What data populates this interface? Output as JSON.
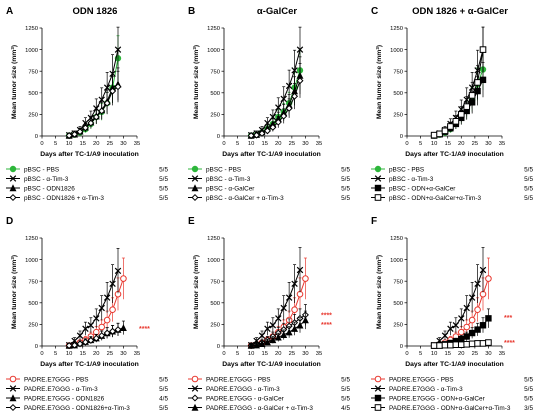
{
  "colors": {
    "red": "#e8382f",
    "green": "#2db63b",
    "black": "#000000"
  },
  "chart_data": [
    {
      "type": "line",
      "letter": "A",
      "title": "ODN 1826",
      "xlabel": "Days after TC-1/A9 inoculation",
      "ylabel_main": "Mean tumor size (mm",
      "ylabel_sup": "3",
      "ylabel_end": ")",
      "xlim": [
        0,
        35
      ],
      "ylim": [
        0,
        1250
      ],
      "xticks": [
        "0",
        "5",
        "10",
        "15",
        "20",
        "25",
        "30",
        "35"
      ],
      "yticks": [
        "0",
        "250",
        "500",
        "750",
        "1000",
        "1250"
      ],
      "series": [
        {
          "name": "pBSC - PBS",
          "ratio": "5/5",
          "color": "#2db63b",
          "marker": "circle",
          "x": [
            10,
            12,
            14,
            16,
            18,
            20,
            22,
            24,
            26,
            28
          ],
          "y": [
            5,
            15,
            40,
            80,
            140,
            220,
            280,
            380,
            560,
            900
          ]
        },
        {
          "name": "pBSC - α-Tim-3",
          "ratio": "5/5",
          "color": "#000000",
          "marker": "x",
          "x": [
            10,
            12,
            14,
            16,
            18,
            20,
            22,
            24,
            26,
            28
          ],
          "y": [
            10,
            30,
            70,
            150,
            210,
            320,
            420,
            560,
            720,
            1000
          ]
        },
        {
          "name": "pBSC - ODN1826",
          "ratio": "5/5",
          "color": "#000000",
          "marker": "triangle",
          "x": [
            10,
            12,
            14,
            16,
            18,
            20,
            22,
            24,
            26,
            28
          ],
          "y": [
            5,
            20,
            55,
            100,
            160,
            230,
            300,
            400,
            560,
            600
          ]
        },
        {
          "name": "pBSC - ODN1826 + α-Tim-3",
          "ratio": "5/5",
          "color": "#000000",
          "marker": "diamond",
          "x": [
            10,
            12,
            14,
            16,
            18,
            20,
            22,
            24,
            26,
            28
          ],
          "y": [
            5,
            20,
            50,
            95,
            150,
            220,
            290,
            380,
            520,
            570
          ]
        }
      ],
      "annotations": []
    },
    {
      "type": "line",
      "letter": "B",
      "title": "α-GalCer",
      "xlabel": "Days after TC-1/A9 inoculation",
      "ylabel_main": "Mean tumor size (mm",
      "ylabel_sup": "3",
      "ylabel_end": ")",
      "xlim": [
        0,
        35
      ],
      "ylim": [
        0,
        1250
      ],
      "xticks": [
        "0",
        "5",
        "10",
        "15",
        "20",
        "25",
        "30",
        "35"
      ],
      "yticks": [
        "0",
        "250",
        "500",
        "750",
        "1000",
        "1250"
      ],
      "series": [
        {
          "name": "pBSC - PBS",
          "ratio": "5/5",
          "color": "#2db63b",
          "marker": "circle",
          "x": [
            10,
            12,
            14,
            16,
            18,
            20,
            22,
            24,
            26,
            28
          ],
          "y": [
            5,
            15,
            40,
            80,
            140,
            220,
            280,
            380,
            560,
            760
          ]
        },
        {
          "name": "pBSC - α-Tim-3",
          "ratio": "5/5",
          "color": "#000000",
          "marker": "x",
          "x": [
            10,
            12,
            14,
            16,
            18,
            20,
            22,
            24,
            26,
            28
          ],
          "y": [
            10,
            30,
            70,
            150,
            220,
            330,
            430,
            580,
            760,
            1000
          ]
        },
        {
          "name": "pBSC - α-GalCer",
          "ratio": "5/5",
          "color": "#000000",
          "marker": "triangle",
          "x": [
            10,
            12,
            14,
            16,
            18,
            20,
            22,
            24,
            26,
            28
          ],
          "y": [
            5,
            15,
            45,
            90,
            140,
            200,
            270,
            360,
            520,
            700
          ]
        },
        {
          "name": "pBSC - α-GalCer + α-Tim-3",
          "ratio": "5/5",
          "color": "#000000",
          "marker": "diamond",
          "x": [
            10,
            12,
            14,
            16,
            18,
            20,
            22,
            24,
            26,
            28
          ],
          "y": [
            5,
            10,
            30,
            60,
            100,
            160,
            230,
            320,
            460,
            640
          ]
        }
      ],
      "annotations": []
    },
    {
      "type": "line",
      "letter": "C",
      "title": "ODN 1826 + α-GalCer",
      "xlabel": "Days after TC-1/A9 inoculation",
      "ylabel_main": "Mean tumor size (mm",
      "ylabel_sup": "3",
      "ylabel_end": ")",
      "xlim": [
        0,
        35
      ],
      "ylim": [
        0,
        1250
      ],
      "xticks": [
        "0",
        "5",
        "10",
        "15",
        "20",
        "25",
        "30",
        "35"
      ],
      "yticks": [
        "0",
        "250",
        "500",
        "750",
        "1000",
        "1250"
      ],
      "series": [
        {
          "name": "pBSC - PBS",
          "ratio": "5/5",
          "color": "#2db63b",
          "marker": "circle",
          "x": [
            10,
            12,
            14,
            16,
            18,
            20,
            22,
            24,
            26,
            28
          ],
          "y": [
            5,
            15,
            40,
            80,
            140,
            220,
            300,
            420,
            600,
            770
          ]
        },
        {
          "name": "pBSC - α-Tim-3",
          "ratio": "5/5",
          "color": "#000000",
          "marker": "x",
          "x": [
            10,
            12,
            14,
            16,
            18,
            20,
            22,
            24,
            26,
            28
          ],
          "y": [
            10,
            30,
            70,
            140,
            210,
            310,
            420,
            560,
            760,
            1000
          ]
        },
        {
          "name": "pBSC - ODN+α-GalCer",
          "ratio": "5/5",
          "color": "#000000",
          "marker": "square",
          "x": [
            10,
            12,
            14,
            16,
            18,
            20,
            22,
            24,
            26,
            28
          ],
          "y": [
            5,
            20,
            50,
            90,
            140,
            210,
            290,
            390,
            520,
            650
          ]
        },
        {
          "name": "pBSC - ODN+α-GalCer+α-Tim-3",
          "ratio": "5/5",
          "color": "#000000",
          "marker": "opensquare",
          "x": [
            10,
            12,
            14,
            16,
            18,
            20,
            22,
            24,
            26,
            28
          ],
          "y": [
            10,
            25,
            60,
            110,
            170,
            250,
            340,
            470,
            620,
            1000
          ]
        }
      ],
      "annotations": []
    },
    {
      "type": "line",
      "letter": "D",
      "title": "",
      "xlabel": "Days after TC-1/A9 inoculation",
      "ylabel_main": "Mean tumor size (mm",
      "ylabel_sup": "3",
      "ylabel_end": ")",
      "xlim": [
        0,
        35
      ],
      "ylim": [
        0,
        1250
      ],
      "xticks": [
        "0",
        "5",
        "10",
        "15",
        "20",
        "25",
        "30",
        "35"
      ],
      "yticks": [
        "0",
        "250",
        "500",
        "750",
        "1000",
        "1250"
      ],
      "series": [
        {
          "name": "PADRE.E7GGG - PBS",
          "ratio": "5/5",
          "color": "#e8382f",
          "marker": "opencircle",
          "x": [
            10,
            12,
            14,
            16,
            18,
            20,
            22,
            24,
            26,
            28,
            30
          ],
          "y": [
            5,
            20,
            40,
            70,
            110,
            160,
            220,
            300,
            420,
            600,
            780
          ]
        },
        {
          "name": "PADRE.E7GGG - α-Tim-3",
          "ratio": "5/5",
          "color": "#000000",
          "marker": "x",
          "x": [
            10,
            12,
            14,
            16,
            18,
            20,
            22,
            24,
            26,
            28
          ],
          "y": [
            10,
            60,
            120,
            200,
            240,
            320,
            440,
            560,
            720,
            870
          ]
        },
        {
          "name": "PADRE.E7GGG - ODN1826",
          "ratio": "4/5",
          "color": "#000000",
          "marker": "triangle",
          "x": [
            10,
            12,
            14,
            16,
            18,
            20,
            22,
            24,
            26,
            28,
            30
          ],
          "y": [
            5,
            10,
            30,
            50,
            70,
            90,
            120,
            150,
            170,
            190,
            210
          ]
        },
        {
          "name": "PADRE.E7GGG - ODN1826+α-Tim-3",
          "ratio": "5/5",
          "color": "#000000",
          "marker": "diamond",
          "x": [
            10,
            12,
            14,
            16,
            18,
            20,
            22,
            24,
            26,
            28
          ],
          "y": [
            5,
            10,
            25,
            45,
            65,
            90,
            120,
            150,
            170,
            190
          ]
        }
      ],
      "annotations": [
        {
          "text": "****",
          "color": "#e8382f",
          "y": 200
        }
      ]
    },
    {
      "type": "line",
      "letter": "E",
      "title": "",
      "xlabel": "Days after TC-1/A9 inoculation",
      "ylabel_main": "Mean tumor size (mm",
      "ylabel_sup": "3",
      "ylabel_end": ")",
      "xlim": [
        0,
        35
      ],
      "ylim": [
        0,
        1250
      ],
      "xticks": [
        "0",
        "5",
        "10",
        "15",
        "20",
        "25",
        "30",
        "35"
      ],
      "yticks": [
        "0",
        "250",
        "500",
        "750",
        "1000",
        "1250"
      ],
      "series": [
        {
          "name": "PADRE.E7GGG - PBS",
          "ratio": "5/5",
          "color": "#e8382f",
          "marker": "opencircle",
          "x": [
            10,
            12,
            14,
            16,
            18,
            20,
            22,
            24,
            26,
            28,
            30
          ],
          "y": [
            5,
            20,
            40,
            70,
            110,
            160,
            220,
            300,
            420,
            600,
            780
          ]
        },
        {
          "name": "PADRE.E7GGG - α-Tim-3",
          "ratio": "5/5",
          "color": "#000000",
          "marker": "x",
          "x": [
            10,
            12,
            14,
            16,
            18,
            20,
            22,
            24,
            26,
            28
          ],
          "y": [
            10,
            60,
            120,
            200,
            240,
            320,
            440,
            560,
            720,
            880
          ]
        },
        {
          "name": "PADRE.E7GGG - α-GalCer",
          "ratio": "5/5",
          "color": "#000000",
          "marker": "diamond",
          "x": [
            10,
            12,
            14,
            16,
            18,
            20,
            22,
            24,
            26,
            28,
            30
          ],
          "y": [
            5,
            15,
            40,
            70,
            110,
            150,
            190,
            230,
            270,
            320,
            360
          ]
        },
        {
          "name": "PADRE.E7GGG - α-GalCer + α-Tim-3",
          "ratio": "4/5",
          "color": "#000000",
          "marker": "triangle",
          "x": [
            10,
            12,
            14,
            16,
            18,
            20,
            22,
            24,
            26,
            28,
            30
          ],
          "y": [
            5,
            10,
            25,
            45,
            70,
            100,
            130,
            160,
            200,
            240,
            300
          ]
        }
      ],
      "annotations": [
        {
          "text": "****",
          "color": "#e8382f",
          "y": 360
        },
        {
          "text": "****",
          "color": "#e8382f",
          "y": 250
        }
      ]
    },
    {
      "type": "line",
      "letter": "F",
      "title": "",
      "xlabel": "Days after TC-1/A9 inoculation",
      "ylabel_main": "Mean tumor size (mm",
      "ylabel_sup": "3",
      "ylabel_end": ")",
      "xlim": [
        0,
        35
      ],
      "ylim": [
        0,
        1250
      ],
      "xticks": [
        "0",
        "5",
        "10",
        "15",
        "20",
        "25",
        "30",
        "35"
      ],
      "yticks": [
        "0",
        "250",
        "500",
        "750",
        "1000",
        "1250"
      ],
      "series": [
        {
          "name": "PADRE.E7GGG - PBS",
          "ratio": "5/5",
          "color": "#e8382f",
          "marker": "opencircle",
          "x": [
            10,
            12,
            14,
            16,
            18,
            20,
            22,
            24,
            26,
            28,
            30
          ],
          "y": [
            5,
            20,
            40,
            70,
            110,
            160,
            220,
            300,
            420,
            600,
            780
          ]
        },
        {
          "name": "PADRE.E7GGG - α-Tim-3",
          "ratio": "5/5",
          "color": "#000000",
          "marker": "x",
          "x": [
            10,
            12,
            14,
            16,
            18,
            20,
            22,
            24,
            26,
            28
          ],
          "y": [
            10,
            60,
            120,
            200,
            240,
            320,
            440,
            560,
            720,
            880
          ]
        },
        {
          "name": "PADRE.E7GGG - ODN+α-GalCer",
          "ratio": "5/5",
          "color": "#000000",
          "marker": "square",
          "x": [
            10,
            12,
            14,
            16,
            18,
            20,
            22,
            24,
            26,
            28,
            30
          ],
          "y": [
            5,
            10,
            20,
            35,
            55,
            80,
            110,
            150,
            190,
            240,
            320
          ]
        },
        {
          "name": "PADRE.E7GGG - ODN+α-GalCer+α-Tim-3",
          "ratio": "3/5",
          "color": "#000000",
          "marker": "opensquare",
          "x": [
            10,
            12,
            14,
            16,
            18,
            20,
            22,
            24,
            26,
            28,
            30
          ],
          "y": [
            5,
            5,
            10,
            10,
            15,
            15,
            20,
            25,
            30,
            30,
            40
          ]
        }
      ],
      "annotations": [
        {
          "text": "***",
          "color": "#e8382f",
          "y": 330
        },
        {
          "text": "****",
          "color": "#e8382f",
          "y": 40
        }
      ]
    }
  ]
}
